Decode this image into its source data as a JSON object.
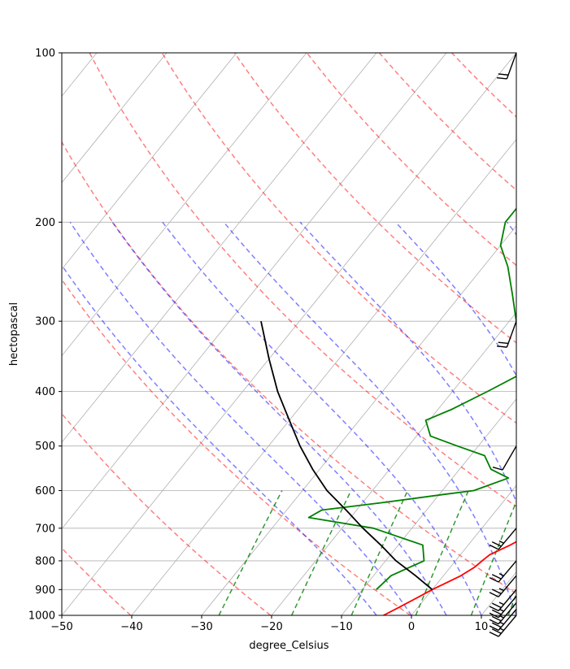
{
  "chart_data": {
    "type": "line",
    "title": "",
    "xlabel": "degree_Celsius",
    "ylabel": "hectopascal",
    "xlim": [
      -50,
      15
    ],
    "ylim": [
      1000,
      100
    ],
    "y_scale": "log",
    "grid": true,
    "x_ticks": [
      -50,
      -40,
      -30,
      -20,
      -10,
      0,
      10
    ],
    "y_ticks": [
      1000,
      900,
      800,
      700,
      600,
      500,
      400,
      300,
      200,
      100
    ],
    "series": [
      {
        "color": "#ff0000",
        "p": [
          1000,
          975,
          950,
          925,
          900,
          880,
          850,
          820,
          800,
          780,
          750,
          720,
          700,
          680,
          650,
          620,
          600,
          570,
          550,
          520,
          500,
          470,
          450,
          420,
          400,
          370,
          350,
          320,
          300,
          270,
          250,
          225,
          200,
          180,
          150,
          125,
          110
        ],
        "x": [
          -4.0,
          -3.0,
          -2.0,
          -1.0,
          0.0,
          1.0,
          2.5,
          3.5,
          3.8,
          4.2,
          6.0,
          7.5,
          8.5,
          8.5,
          8.0,
          7.0,
          5.5,
          3.5,
          2.5,
          -0.5,
          -2.5,
          -4.5,
          -5.5,
          -8.0,
          -9.5,
          -12.0,
          -13.5,
          -16.0,
          -17.5,
          -17.5,
          -17.0,
          -16.0,
          -14.8,
          -13.5,
          -12.5,
          -11.5,
          -9.0
        ]
      },
      {
        "color": "#008000",
        "p": [
          900,
          850,
          800,
          750,
          700,
          670,
          650,
          630,
          610,
          600,
          570,
          550,
          520,
          500,
          480,
          450,
          430,
          400,
          370,
          330,
          300,
          270,
          240,
          220,
          200,
          110,
          100
        ],
        "x": [
          -8.0,
          -7.5,
          -4.5,
          -6.5,
          -15.5,
          -26.0,
          -25.0,
          -17.0,
          -9.5,
          -5.5,
          -2.0,
          -5.5,
          -8.0,
          -13.0,
          -18.0,
          -20.5,
          -18.0,
          -15.0,
          -12.0,
          -16.0,
          -19.0,
          -22.5,
          -26.5,
          -30.0,
          -32.0,
          -32.0,
          -31.0
        ]
      },
      {
        "color": "#000000",
        "p": [
          900,
          850,
          800,
          750,
          700,
          650,
          600,
          550,
          500,
          450,
          400,
          350,
          300
        ],
        "x": [
          0.0,
          -4.0,
          -8.5,
          -12.5,
          -17.0,
          -21.5,
          -26.5,
          -31.0,
          -35.5,
          -40.0,
          -45.0,
          -50.0,
          -55.5
        ]
      }
    ],
    "wind_barbs": [
      {
        "p": 1000,
        "speed_kt": 25,
        "direction_deg": 220
      },
      {
        "p": 975,
        "speed_kt": 25,
        "direction_deg": 220
      },
      {
        "p": 950,
        "speed_kt": 25,
        "direction_deg": 220
      },
      {
        "p": 925,
        "speed_kt": 25,
        "direction_deg": 220
      },
      {
        "p": 900,
        "speed_kt": 25,
        "direction_deg": 220
      },
      {
        "p": 850,
        "speed_kt": 25,
        "direction_deg": 220
      },
      {
        "p": 800,
        "speed_kt": 25,
        "direction_deg": 220
      },
      {
        "p": 700,
        "speed_kt": 25,
        "direction_deg": 220
      },
      {
        "p": 500,
        "speed_kt": 10,
        "direction_deg": 210
      },
      {
        "p": 300,
        "speed_kt": 20,
        "direction_deg": 200
      },
      {
        "p": 100,
        "speed_kt": 20,
        "direction_deg": 200
      }
    ],
    "dry_adiabats_theta_K": [
      233,
      253,
      273,
      293,
      313,
      333,
      353,
      373,
      393,
      413,
      433,
      453,
      473
    ],
    "moist_adiabats_start_C": [
      -5,
      0,
      5,
      10,
      15,
      20,
      25,
      30
    ],
    "mixing_ratio_lines_gkg": [
      0.4,
      1,
      2,
      4,
      7,
      10,
      16,
      24
    ]
  }
}
